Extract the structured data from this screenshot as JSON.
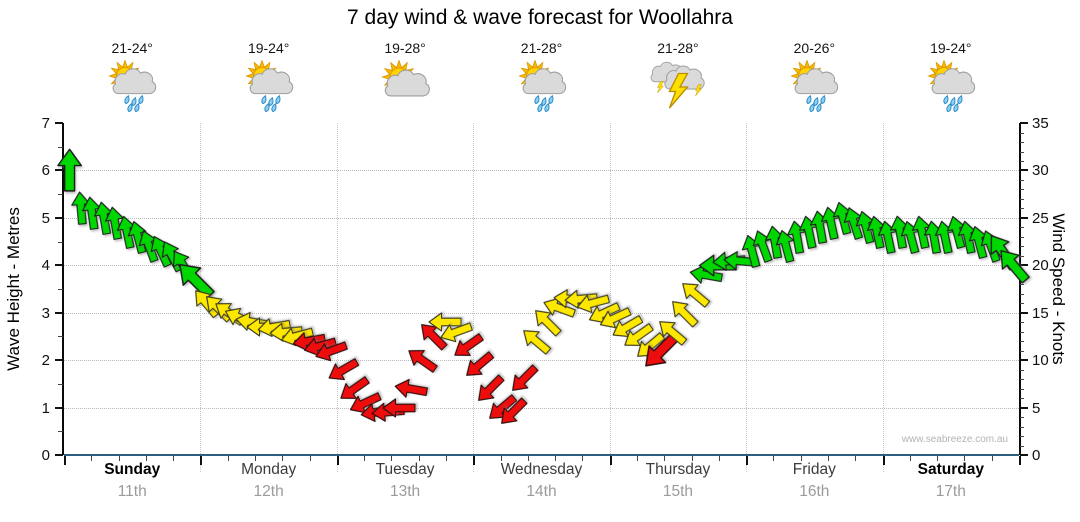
{
  "page": {
    "watermark": "www.seabreeze.com.au"
  },
  "days": [
    {
      "name": "Sunday",
      "date": "11th",
      "temp": "21-24°",
      "icon": "showers",
      "bold": true
    },
    {
      "name": "Monday",
      "date": "12th",
      "temp": "19-24°",
      "icon": "showers",
      "bold": false
    },
    {
      "name": "Tuesday",
      "date": "13th",
      "temp": "19-28°",
      "icon": "partly-cloudy",
      "bold": false
    },
    {
      "name": "Wednesday",
      "date": "14th",
      "temp": "21-28°",
      "icon": "showers",
      "bold": false
    },
    {
      "name": "Thursday",
      "date": "15th",
      "temp": "21-28°",
      "icon": "storm",
      "bold": false
    },
    {
      "name": "Friday",
      "date": "16th",
      "temp": "20-26°",
      "icon": "showers",
      "bold": false
    },
    {
      "name": "Saturday",
      "date": "17th",
      "temp": "19-24°",
      "icon": "showers",
      "bold": true
    }
  ],
  "chart_data": {
    "type": "wind-arrow-timeseries",
    "title": "7 day wind & wave forecast for Woollahra",
    "left_axis": {
      "label": "Wave Height - Metres",
      "min": 0,
      "max": 7,
      "tick_labels": [
        "0",
        "1",
        "2",
        "3",
        "4",
        "5",
        "6",
        "7"
      ]
    },
    "right_axis": {
      "label": "Wind Speed - Knots",
      "min": 0,
      "max": 35,
      "tick_labels": [
        "0",
        "5",
        "10",
        "15",
        "20",
        "25",
        "30",
        "35"
      ]
    },
    "x_axis": {
      "categories_from": "days",
      "gridlines_at_day_boundaries": true
    },
    "grid": true,
    "wind_colors": {
      "g": "#00d600",
      "y": "#ffe800",
      "r": "#ee0d0d"
    },
    "wind_strokes": {
      "g": "#1c1c1c",
      "y": "#3a3a1c",
      "r": "#2a0c0c"
    },
    "arrow_columns": [
      "t_days",
      "knots",
      "direction_deg_from_up",
      "color",
      "scale"
    ],
    "wind_arrows": [
      [
        0.042,
        30,
        0,
        "g",
        1.3
      ],
      [
        0.125,
        26,
        -5,
        "g",
        1
      ],
      [
        0.208,
        25.5,
        -8,
        "g",
        1
      ],
      [
        0.292,
        25,
        -10,
        "g",
        1
      ],
      [
        0.375,
        24.5,
        -10,
        "g",
        1
      ],
      [
        0.458,
        23.5,
        -12,
        "g",
        1
      ],
      [
        0.542,
        23,
        -15,
        "g",
        1
      ],
      [
        0.625,
        22,
        -20,
        "g",
        1
      ],
      [
        0.708,
        21.5,
        -25,
        "g",
        1
      ],
      [
        0.792,
        21,
        -28,
        "g",
        1
      ],
      [
        0.875,
        20,
        -32,
        "g",
        1
      ],
      [
        0.958,
        18.5,
        -45,
        "g",
        1.35
      ],
      [
        1.042,
        16,
        -40,
        "y",
        1
      ],
      [
        1.125,
        15.5,
        -45,
        "y",
        1
      ],
      [
        1.208,
        15,
        -55,
        "y",
        1
      ],
      [
        1.292,
        14.5,
        -65,
        "y",
        1
      ],
      [
        1.375,
        14,
        -80,
        "y",
        1
      ],
      [
        1.458,
        13.5,
        -90,
        "y",
        1
      ],
      [
        1.542,
        13.5,
        -100,
        "y",
        1
      ],
      [
        1.625,
        13,
        -95,
        "y",
        1
      ],
      [
        1.708,
        12.5,
        -105,
        "y",
        1
      ],
      [
        1.792,
        12,
        -100,
        "r",
        1
      ],
      [
        1.875,
        11.5,
        -105,
        "r",
        1
      ],
      [
        1.958,
        11,
        -110,
        "r",
        1
      ],
      [
        2.042,
        9,
        -120,
        "r",
        1
      ],
      [
        2.125,
        7,
        -125,
        "r",
        1
      ],
      [
        2.208,
        5.5,
        -115,
        "r",
        1
      ],
      [
        2.292,
        4.5,
        -100,
        "r",
        1
      ],
      [
        2.375,
        4.5,
        -95,
        "r",
        1
      ],
      [
        2.458,
        5,
        -90,
        "r",
        1
      ],
      [
        2.542,
        7,
        -80,
        "r",
        1
      ],
      [
        2.625,
        10,
        -55,
        "r",
        1
      ],
      [
        2.708,
        12.5,
        -45,
        "r",
        1
      ],
      [
        2.792,
        14,
        -90,
        "y",
        1
      ],
      [
        2.875,
        13,
        -110,
        "y",
        1
      ],
      [
        2.958,
        11.5,
        -125,
        "r",
        1
      ],
      [
        3.042,
        9.5,
        -130,
        "r",
        1
      ],
      [
        3.125,
        7,
        -135,
        "r",
        1
      ],
      [
        3.208,
        5,
        -130,
        "r",
        1
      ],
      [
        3.292,
        4.5,
        -135,
        "r",
        1
      ],
      [
        3.375,
        8,
        -135,
        "r",
        1
      ],
      [
        3.458,
        12,
        -50,
        "y",
        1
      ],
      [
        3.542,
        14,
        -45,
        "y",
        1
      ],
      [
        3.625,
        15.5,
        -70,
        "y",
        1
      ],
      [
        3.708,
        16.5,
        -85,
        "y",
        1
      ],
      [
        3.792,
        16.5,
        -95,
        "y",
        1
      ],
      [
        3.875,
        16,
        -105,
        "y",
        1
      ],
      [
        3.958,
        15,
        -115,
        "y",
        1
      ],
      [
        4.042,
        14.5,
        -115,
        "y",
        1
      ],
      [
        4.125,
        13.5,
        -120,
        "y",
        1
      ],
      [
        4.208,
        12.5,
        -125,
        "y",
        1
      ],
      [
        4.292,
        11.5,
        -130,
        "y",
        1
      ],
      [
        4.375,
        11,
        -135,
        "r",
        1.3
      ],
      [
        4.458,
        13,
        -50,
        "y",
        1
      ],
      [
        4.542,
        15,
        -45,
        "y",
        1
      ],
      [
        4.625,
        17,
        -50,
        "y",
        1
      ],
      [
        4.708,
        19,
        -80,
        "g",
        1
      ],
      [
        4.792,
        20,
        -90,
        "g",
        1.15
      ],
      [
        4.875,
        20.5,
        -95,
        "g",
        1
      ],
      [
        4.958,
        20.5,
        -85,
        "g",
        1
      ],
      [
        5.042,
        21.5,
        -15,
        "g",
        1
      ],
      [
        5.125,
        22,
        -20,
        "g",
        1
      ],
      [
        5.208,
        22.5,
        -10,
        "g",
        1
      ],
      [
        5.292,
        22,
        -15,
        "g",
        1
      ],
      [
        5.375,
        23,
        -10,
        "g",
        1
      ],
      [
        5.458,
        23.5,
        -12,
        "g",
        1
      ],
      [
        5.542,
        24,
        -10,
        "g",
        1
      ],
      [
        5.625,
        24.5,
        -12,
        "g",
        1
      ],
      [
        5.708,
        25,
        -15,
        "g",
        1
      ],
      [
        5.792,
        24.5,
        -18,
        "g",
        1
      ],
      [
        5.875,
        24,
        -15,
        "g",
        1
      ],
      [
        5.958,
        23.5,
        -12,
        "g",
        1
      ],
      [
        6.042,
        23,
        -12,
        "g",
        1
      ],
      [
        6.125,
        23.5,
        -10,
        "g",
        1
      ],
      [
        6.208,
        23,
        -15,
        "g",
        1
      ],
      [
        6.292,
        23.5,
        -12,
        "g",
        1
      ],
      [
        6.375,
        23,
        -10,
        "g",
        1
      ],
      [
        6.458,
        23,
        -12,
        "g",
        1
      ],
      [
        6.542,
        23.5,
        -15,
        "g",
        1
      ],
      [
        6.625,
        23,
        -12,
        "g",
        1
      ],
      [
        6.708,
        22.5,
        -15,
        "g",
        1
      ],
      [
        6.792,
        22,
        -20,
        "g",
        1
      ],
      [
        6.875,
        21.5,
        -35,
        "g",
        1.2
      ],
      [
        6.958,
        20,
        -40,
        "g",
        1.2
      ]
    ]
  }
}
